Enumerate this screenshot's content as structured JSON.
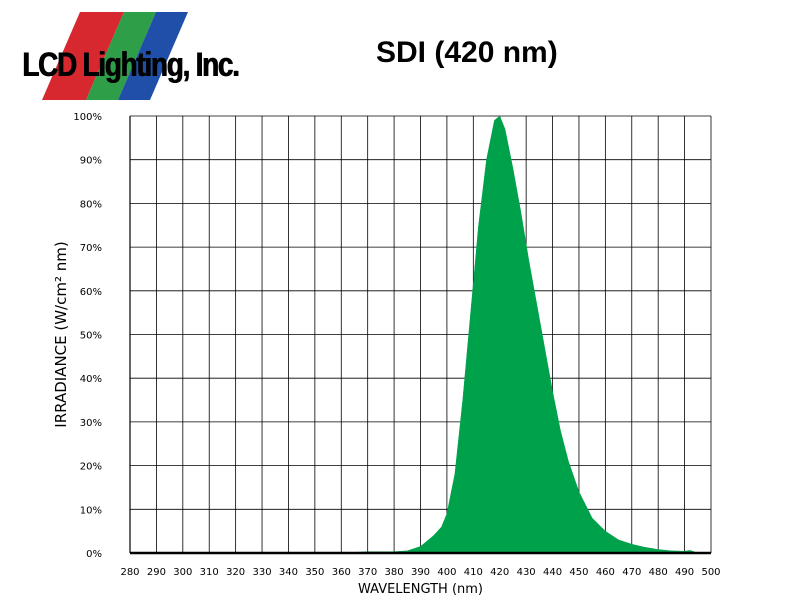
{
  "logo": {
    "text": "LCD Lighting, Inc.",
    "stripe_colors": [
      "#d7282f",
      "#2e9e48",
      "#1f4fa8"
    ]
  },
  "chart_title": "SDI (420 nm)",
  "chart_data": {
    "type": "area",
    "title": "SDI (420 nm)",
    "xlabel": "WAVELENGTH (nm)",
    "ylabel": "IRRADIANCE (W/cm² nm)",
    "xlim": [
      280,
      500
    ],
    "ylim": [
      0,
      100
    ],
    "grid": true,
    "fill_color": "#00a14b",
    "x_ticks": [
      "280",
      "290",
      "300",
      "310",
      "320",
      "330",
      "340",
      "350",
      "360",
      "370",
      "380",
      "390",
      "400",
      "410",
      "420",
      "430",
      "440",
      "450",
      "460",
      "470",
      "480",
      "490",
      "500"
    ],
    "y_ticks": [
      "0%",
      "10%",
      "20%",
      "30%",
      "40%",
      "50%",
      "60%",
      "70%",
      "80%",
      "90%",
      "100%"
    ],
    "series": [
      {
        "x": [
          360,
          370,
          380,
          385,
          390,
          395,
          398,
          400,
          403,
          406,
          409,
          412,
          415,
          418,
          420,
          422,
          425,
          428,
          431,
          434,
          437,
          440,
          443,
          446,
          450,
          455,
          460,
          465,
          470,
          475,
          480,
          485,
          490,
          492,
          495
        ],
        "y": [
          0,
          0.3,
          0.3,
          0.5,
          1.5,
          4,
          6,
          9,
          18,
          35,
          55,
          75,
          90,
          99,
          100,
          97,
          88,
          78,
          67,
          57,
          47,
          37,
          28,
          21,
          14,
          8,
          5,
          3,
          2,
          1.3,
          0.8,
          0.5,
          0.4,
          0.6,
          0
        ]
      }
    ]
  }
}
